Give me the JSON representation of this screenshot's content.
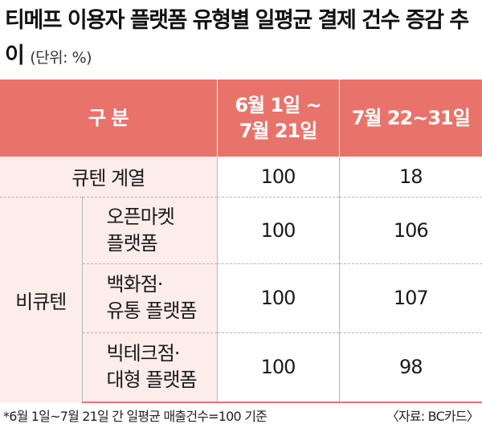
{
  "title": "티메프 이용자 플랫폼 유형별 일평균 결제 건수 증감 추이",
  "unit": "(단위: %)",
  "header": {
    "category": "구 분",
    "period1_line1": "6월 1일 ~",
    "period1_line2": "7월 21일",
    "period2": "7월 22~31일"
  },
  "rows": [
    {
      "group": "",
      "name_line1": "큐텐 계열",
      "name_line2": "",
      "v1": "100",
      "v2": "18"
    },
    {
      "group": "비큐텐",
      "name_line1": "오픈마켓",
      "name_line2": "플랫폼",
      "v1": "100",
      "v2": "106"
    },
    {
      "group": "비큐텐",
      "name_line1": "백화점·",
      "name_line2": "유통 플랫폼",
      "v1": "100",
      "v2": "107"
    },
    {
      "group": "비큐텐",
      "name_line1": "빅테크점·",
      "name_line2": "대형 플랫폼",
      "v1": "100",
      "v2": "98"
    }
  ],
  "group_label": "비큐텐",
  "footnote": "*6월 1일~7월 21일 간 일평균 매출건수=100 기준",
  "source": "〈자료: BC카드〉",
  "chart_data": {
    "type": "table",
    "title": "티메프 이용자 플랫폼 유형별 일평균 결제 건수 증감 추이",
    "unit": "%",
    "columns": [
      "구 분",
      "6월 1일 ~ 7월 21일",
      "7월 22~31일"
    ],
    "categories": [
      "큐텐 계열",
      "비큐텐 오픈마켓 플랫폼",
      "비큐텐 백화점·유통 플랫폼",
      "비큐텐 빅테크점·대형 플랫폼"
    ],
    "series": [
      {
        "name": "6월 1일 ~ 7월 21일",
        "values": [
          100,
          100,
          100,
          100
        ]
      },
      {
        "name": "7월 22~31일",
        "values": [
          18,
          106,
          107,
          98
        ]
      }
    ]
  }
}
